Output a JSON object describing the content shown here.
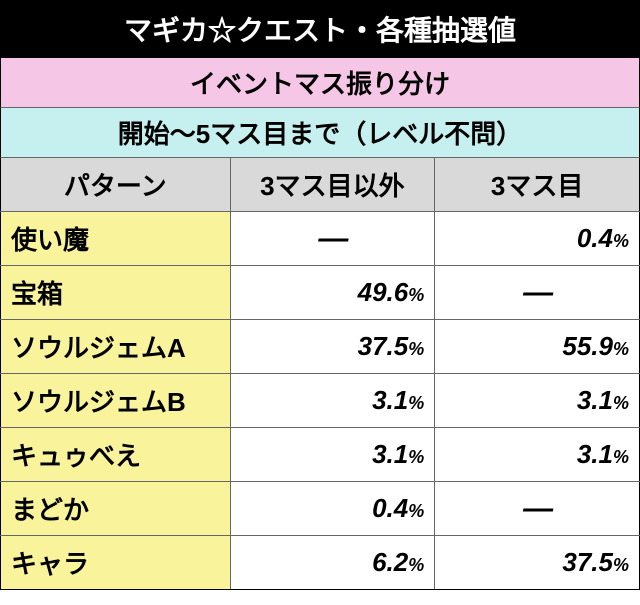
{
  "title": "マギカ☆クエスト・各種抽選値",
  "subheader1": "イベントマス振り分け",
  "subheader2": "開始〜5マス目まで（レベル不問）",
  "columns": {
    "pattern": "パターン",
    "col1": "3マス目以外",
    "col2": "3マス目"
  },
  "rows": [
    {
      "label": "使い魔",
      "v1": null,
      "v2": "0.4"
    },
    {
      "label": "宝箱",
      "v1": "49.6",
      "v2": null
    },
    {
      "label": "ソウルジェムA",
      "v1": "37.5",
      "v2": "55.9"
    },
    {
      "label": "ソウルジェムB",
      "v1": "3.1",
      "v2": "3.1"
    },
    {
      "label": "キュゥべえ",
      "v1": "3.1",
      "v2": "3.1"
    },
    {
      "label": "まどか",
      "v1": "0.4",
      "v2": null
    },
    {
      "label": "キャラ",
      "v1": "6.2",
      "v2": "37.5"
    }
  ],
  "dash": "―",
  "pct": "%"
}
